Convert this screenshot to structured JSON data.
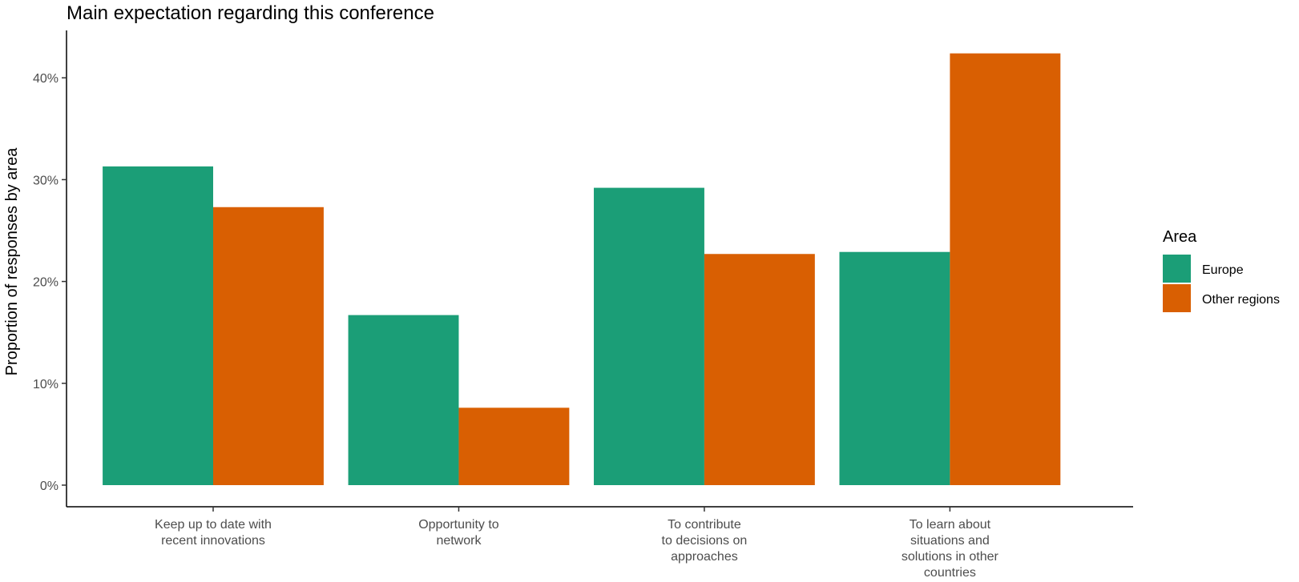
{
  "chart_data": {
    "type": "bar",
    "title": "Main expectation regarding this conference",
    "xlabel": "",
    "ylabel": "Proportion of responses by area",
    "categories": [
      [
        "Keep up to date with",
        "recent innovations"
      ],
      [
        "Opportunity to",
        "network"
      ],
      [
        "To contribute",
        "to decisions on",
        "approaches"
      ],
      [
        "To learn about",
        "situations and",
        "solutions in other",
        "countries"
      ]
    ],
    "series": [
      {
        "name": "Europe",
        "color": "#1B9E77",
        "values": [
          31.3,
          16.7,
          29.2,
          22.9
        ]
      },
      {
        "name": "Other regions",
        "color": "#D95F02",
        "values": [
          27.3,
          7.6,
          22.7,
          42.4
        ]
      }
    ],
    "yticks": [
      0,
      10,
      20,
      30,
      40
    ],
    "ytick_labels": [
      "0%",
      "10%",
      "20%",
      "30%",
      "40%"
    ],
    "ylim": [
      0,
      44
    ],
    "grid": false,
    "legend": {
      "title": "Area",
      "placement": "right"
    }
  }
}
